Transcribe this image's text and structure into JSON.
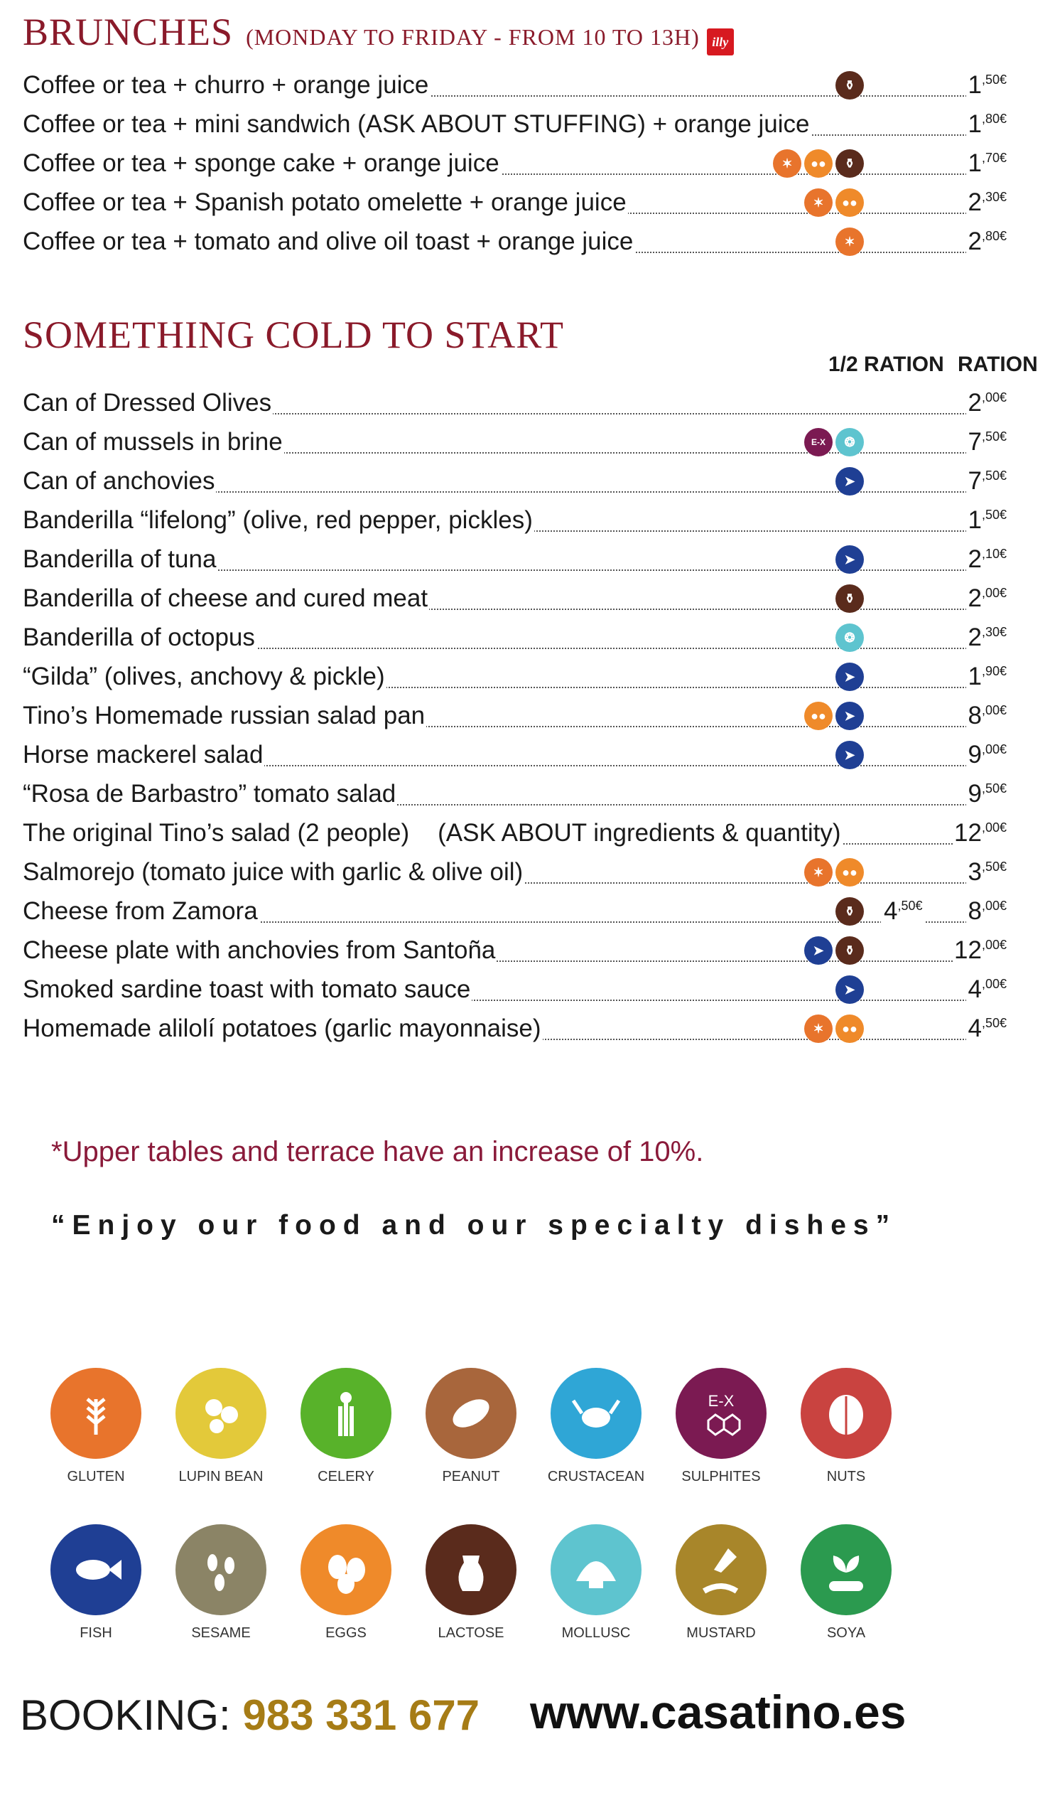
{
  "brunches": {
    "title": "BRUNCHES",
    "subtitle": "(MONDAY TO FRIDAY - FROM 10 TO 13H)",
    "logo_text": "illy",
    "items": [
      {
        "name": "Coffee or tea + churro + orange juice",
        "icons": [
          "lactose"
        ],
        "price": "1",
        "cents": ",50€"
      },
      {
        "name": "Coffee or tea + mini sandwich (ASK ABOUT STUFFING) + orange juice",
        "icons": [],
        "price": "1",
        "cents": ",80€"
      },
      {
        "name": "Coffee or tea + sponge cake  + orange juice",
        "icons": [
          "gluten",
          "eggs",
          "lactose"
        ],
        "price": "1",
        "cents": ",70€"
      },
      {
        "name": "Coffee or tea + Spanish potato omelette + orange juice",
        "icons": [
          "gluten",
          "eggs"
        ],
        "price": "2",
        "cents": ",30€"
      },
      {
        "name": "Coffee or tea + tomato and olive oil toast + orange juice",
        "icons": [
          "gluten"
        ],
        "price": "2",
        "cents": ",80€"
      }
    ]
  },
  "cold": {
    "title": "SOMETHING COLD TO START",
    "half_header": "1/2 RATION",
    "full_header": "RATION",
    "items": [
      {
        "name": "Can of Dressed Olives",
        "icons": [],
        "price": "2",
        "cents": ",00€"
      },
      {
        "name": "Can of mussels in brine",
        "icons": [
          "sulphites",
          "mollusc"
        ],
        "price": "7",
        "cents": ",50€"
      },
      {
        "name": "Can of anchovies",
        "icons": [
          "fish"
        ],
        "price": "7",
        "cents": ",50€"
      },
      {
        "name": "Banderilla “lifelong” (olive, red pepper, pickles)",
        "icons": [],
        "price": "1",
        "cents": ",50€"
      },
      {
        "name": "Banderilla of tuna",
        "icons": [
          "fish"
        ],
        "price": "2",
        "cents": ",10€"
      },
      {
        "name": "Banderilla of cheese and cured meat",
        "icons": [
          "lactose"
        ],
        "price": "2",
        "cents": ",00€"
      },
      {
        "name": "Banderilla of octopus",
        "icons": [
          "mollusc"
        ],
        "price": "2",
        "cents": ",30€"
      },
      {
        "name": "“Gilda” (olives, anchovy & pickle)",
        "icons": [
          "fish"
        ],
        "price": "1",
        "cents": ",90€"
      },
      {
        "name": "Tino’s Homemade russian salad pan",
        "icons": [
          "eggs",
          "fish"
        ],
        "price": "8",
        "cents": ",00€"
      },
      {
        "name": "Horse mackerel salad",
        "icons": [
          "fish"
        ],
        "price": "9",
        "cents": ",00€"
      },
      {
        "name": "“Rosa de Barbastro” tomato salad",
        "icons": [],
        "price": "9",
        "cents": ",50€"
      },
      {
        "name": "The original Tino’s salad (2 people)",
        "extra": "(ASK ABOUT ingredients & quantity)",
        "icons": [],
        "price": "12",
        "cents": ",00€"
      },
      {
        "name": "Salmorejo (tomato juice with garlic & olive oil)",
        "icons": [
          "gluten",
          "eggs"
        ],
        "price": "3",
        "cents": ",50€"
      },
      {
        "name": "Cheese from Zamora",
        "icons": [
          "lactose"
        ],
        "half_price": "4",
        "half_cents": ",50€",
        "price": "8",
        "cents": ",00€"
      },
      {
        "name": "Cheese plate with anchovies from Santoña",
        "icons": [
          "fish",
          "lactose"
        ],
        "price": "12",
        "cents": ",00€"
      },
      {
        "name": "Smoked sardine toast with tomato sauce",
        "icons": [
          "fish"
        ],
        "price": "4",
        "cents": ",00€"
      },
      {
        "name": "Homemade alilolí potatoes (garlic mayonnaise)",
        "icons": [
          "gluten",
          "eggs"
        ],
        "price": "4",
        "cents": ",50€"
      }
    ]
  },
  "note": "*Upper tables and terrace have an increase of 10%.",
  "quote": "“Enjoy our food and our specialty dishes”",
  "allergens": [
    {
      "key": "gluten",
      "label": "GLUTEN",
      "color": "#e8742c"
    },
    {
      "key": "lupin",
      "label": "LUPIN BEAN",
      "color": "#e3c93a"
    },
    {
      "key": "celery",
      "label": "CELERY",
      "color": "#58b22a"
    },
    {
      "key": "peanut",
      "label": "PEANUT",
      "color": "#a8663c"
    },
    {
      "key": "crustacean",
      "label": "CRUSTACEAN",
      "color": "#2fa6d6"
    },
    {
      "key": "sulphites",
      "label": "SULPHITES",
      "color": "#7b1a52"
    },
    {
      "key": "nuts",
      "label": "NUTS",
      "color": "#c94340"
    },
    {
      "key": "fish",
      "label": "FISH",
      "color": "#1f3f94"
    },
    {
      "key": "sesame",
      "label": "SESAME",
      "color": "#8b8466"
    },
    {
      "key": "eggs",
      "label": "EGGS",
      "color": "#ef8a2a"
    },
    {
      "key": "lactose",
      "label": "LACTOSE",
      "color": "#5a2b1c"
    },
    {
      "key": "mollusc",
      "label": "MOLLUSC",
      "color": "#5ec4cf"
    },
    {
      "key": "mustard",
      "label": "MUSTARD",
      "color": "#a8862a"
    },
    {
      "key": "soya",
      "label": "SOYA",
      "color": "#2b9a4f"
    }
  ],
  "footer": {
    "booking_label": "BOOKING:",
    "booking_number": "983 331 677",
    "website": "www.casatino.es"
  }
}
